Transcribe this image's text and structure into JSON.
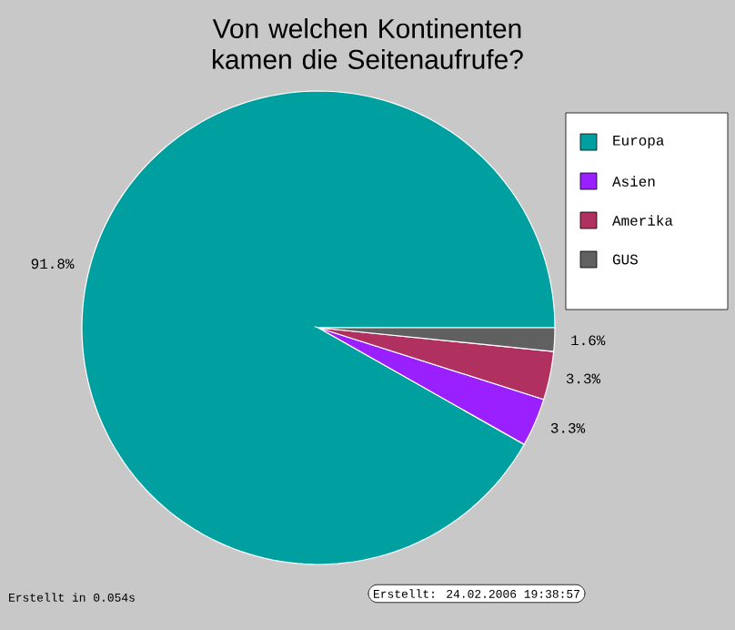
{
  "chart_data": {
    "type": "pie",
    "title": "Von welchen Kontinenten kamen die Seitenaufrufe?",
    "categories": [
      "Europa",
      "Asien",
      "Amerika",
      "GUS"
    ],
    "values": [
      91.8,
      3.3,
      3.3,
      1.6
    ],
    "colors": [
      "#00a0a0",
      "#9a20ff",
      "#b03060",
      "#606060"
    ],
    "value_labels": [
      "91.8%",
      "3.3%",
      "3.3%",
      "1.6%"
    ],
    "legend": "top right",
    "annotations": [
      "Erstellt in 0.054s",
      "Erstellt: 24.02.2006 19:38:57"
    ]
  }
}
